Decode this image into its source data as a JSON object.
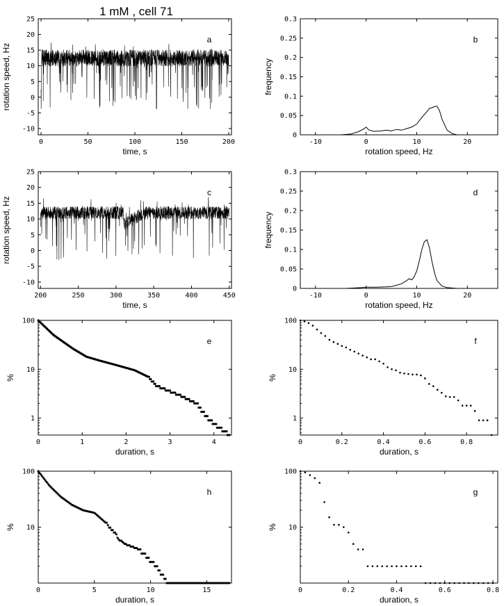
{
  "figure_title": "1 mM , cell 71",
  "chart_data": [
    {
      "id": "a",
      "panel_label": "a",
      "type": "line",
      "xlabel": "time, s",
      "ylabel": "rotation speed, Hz",
      "xlim": [
        -3,
        203
      ],
      "ylim": [
        -12,
        25
      ],
      "xticks": [
        0,
        50,
        100,
        150,
        200
      ],
      "yticks": [
        -10,
        -5,
        0,
        5,
        10,
        15,
        20,
        25
      ],
      "trace": {
        "t_start": 0,
        "t_end": 200,
        "mean": 12.5,
        "noise": 1.6,
        "dips": 110,
        "dip_min": -4,
        "seed": 11
      },
      "description": "rotation speed time trace, 0-200 s"
    },
    {
      "id": "b",
      "panel_label": "b",
      "type": "line",
      "xlabel": "rotation speed, Hz",
      "ylabel": "frequency",
      "xlim": [
        -13,
        26
      ],
      "ylim": [
        0,
        0.3
      ],
      "xticks": [
        -10,
        0,
        10,
        20
      ],
      "yticks": [
        0,
        0.05,
        0.1,
        0.15,
        0.2,
        0.25,
        0.3
      ],
      "x": [
        -13,
        -5,
        -3,
        -1.5,
        -0.5,
        0,
        0.5,
        1.5,
        3,
        4,
        5,
        6,
        7,
        8,
        9,
        10,
        11,
        12,
        12.5,
        13,
        13.5,
        14,
        14.5,
        15,
        16,
        17,
        18,
        20,
        26
      ],
      "y": [
        0,
        0,
        0.002,
        0.008,
        0.015,
        0.02,
        0.013,
        0.009,
        0.01,
        0.012,
        0.01,
        0.014,
        0.012,
        0.016,
        0.02,
        0.028,
        0.045,
        0.06,
        0.068,
        0.07,
        0.073,
        0.074,
        0.062,
        0.04,
        0.012,
        0.003,
        0,
        0,
        0
      ]
    },
    {
      "id": "c",
      "panel_label": "c",
      "type": "line",
      "xlabel": "time, s",
      "ylabel": "rotation speed, Hz",
      "xlim": [
        197,
        453
      ],
      "ylim": [
        -12,
        25
      ],
      "xticks": [
        200,
        250,
        300,
        350,
        400,
        450
      ],
      "yticks": [
        -10,
        -5,
        0,
        5,
        10,
        15,
        20,
        25
      ],
      "trace": {
        "t_start": 200,
        "t_end": 450,
        "mean": 12,
        "noise": 1.2,
        "dips": 70,
        "dip_min": -3,
        "seed": 29,
        "sag": [
          310,
          340,
          8.5
        ]
      },
      "description": "rotation speed time trace, 200-450 s"
    },
    {
      "id": "d",
      "panel_label": "d",
      "type": "line",
      "xlabel": "rotation speed, Hz",
      "ylabel": "frequency",
      "xlim": [
        -13,
        26
      ],
      "ylim": [
        0,
        0.3
      ],
      "xticks": [
        -10,
        0,
        10,
        20
      ],
      "yticks": [
        0,
        0.05,
        0.1,
        0.15,
        0.2,
        0.25,
        0.3
      ],
      "x": [
        -13,
        -4,
        -1,
        0,
        2,
        4,
        5,
        6,
        7,
        8,
        8.5,
        9,
        9.5,
        10,
        10.5,
        11,
        11.5,
        12,
        12.5,
        13,
        13.5,
        14,
        15,
        16,
        18,
        26
      ],
      "y": [
        0,
        0,
        0.002,
        0.003,
        0.003,
        0.004,
        0.005,
        0.008,
        0.012,
        0.02,
        0.025,
        0.022,
        0.03,
        0.045,
        0.07,
        0.1,
        0.12,
        0.125,
        0.105,
        0.07,
        0.04,
        0.02,
        0.006,
        0.002,
        0,
        0
      ]
    },
    {
      "id": "e",
      "panel_label": "e",
      "type": "scatter",
      "xlabel": "duration, s",
      "ylabel": "%",
      "yscale": "log",
      "xlim": [
        0,
        4.4
      ],
      "ylim": [
        0.45,
        100
      ],
      "xticks": [
        0,
        1,
        2,
        3,
        4
      ],
      "ytick_labels": [
        "100",
        "10",
        "1"
      ],
      "yticks": [
        100,
        10,
        1
      ],
      "step_data": [
        [
          0,
          100
        ],
        [
          0.35,
          50
        ],
        [
          0.8,
          26
        ],
        [
          1.1,
          18
        ],
        [
          1.4,
          15
        ],
        [
          1.8,
          12
        ],
        [
          2.2,
          9.5
        ],
        [
          2.5,
          7
        ],
        [
          2.7,
          4.5
        ],
        [
          3.2,
          3
        ],
        [
          3.6,
          2
        ],
        [
          3.9,
          0.9
        ],
        [
          4.35,
          0.45
        ]
      ],
      "n_points": 220
    },
    {
      "id": "f",
      "panel_label": "f",
      "type": "scatter",
      "xlabel": "duration, s",
      "ylabel": "%",
      "yscale": "log",
      "xlim": [
        0,
        0.95
      ],
      "ylim": [
        0.45,
        100
      ],
      "xticks": [
        0,
        0.2,
        0.4,
        0.6,
        0.8
      ],
      "ytick_labels": [
        "100",
        "10",
        "1"
      ],
      "yticks": [
        100,
        10,
        1
      ],
      "x": [
        0,
        0.02,
        0.04,
        0.06,
        0.08,
        0.1,
        0.12,
        0.14,
        0.16,
        0.18,
        0.2,
        0.22,
        0.24,
        0.26,
        0.28,
        0.3,
        0.32,
        0.34,
        0.36,
        0.38,
        0.4,
        0.42,
        0.44,
        0.46,
        0.48,
        0.5,
        0.52,
        0.54,
        0.56,
        0.58,
        0.6,
        0.62,
        0.64,
        0.66,
        0.68,
        0.7,
        0.72,
        0.74,
        0.76,
        0.78,
        0.8,
        0.82,
        0.84,
        0.86,
        0.88,
        0.9,
        0.92
      ],
      "y": [
        100,
        95,
        88,
        78,
        65,
        55,
        48,
        40,
        36,
        33,
        30,
        28,
        25,
        23,
        21,
        19,
        17.5,
        16,
        16,
        14.5,
        13,
        11,
        10,
        9.5,
        8.5,
        8.2,
        8,
        7.8,
        7.8,
        7.5,
        6.5,
        5,
        4.5,
        3.8,
        3.3,
        2.8,
        2.7,
        2.7,
        2.3,
        1.8,
        1.8,
        1.8,
        1.4,
        0.9,
        0.9,
        0.9,
        0.45
      ]
    },
    {
      "id": "h",
      "panel_label": "h",
      "type": "scatter",
      "xlabel": "duration, s",
      "ylabel": "%",
      "yscale": "log",
      "xlim": [
        0,
        17.2
      ],
      "ylim": [
        1,
        100
      ],
      "xticks": [
        0,
        5,
        10,
        15
      ],
      "ytick_labels": [
        "100",
        "10"
      ],
      "yticks": [
        100,
        10
      ],
      "step_data": [
        [
          0,
          100
        ],
        [
          1,
          55
        ],
        [
          2,
          35
        ],
        [
          3,
          25
        ],
        [
          4,
          20
        ],
        [
          5,
          18
        ],
        [
          6,
          12
        ],
        [
          6.8,
          8
        ],
        [
          7.2,
          6
        ],
        [
          7.7,
          5
        ],
        [
          9,
          4
        ],
        [
          10.5,
          2
        ],
        [
          11.5,
          1
        ],
        [
          17,
          1
        ]
      ],
      "n_points": 160
    },
    {
      "id": "g",
      "panel_label": "g",
      "type": "scatter",
      "xlabel": "duration, s",
      "ylabel": "%",
      "yscale": "log",
      "xlim": [
        0,
        0.82
      ],
      "ylim": [
        1,
        100
      ],
      "xticks": [
        0,
        0.2,
        0.4,
        0.6,
        0.8
      ],
      "ytick_labels": [
        "100",
        "10"
      ],
      "yticks": [
        100,
        10
      ],
      "x": [
        0,
        0.02,
        0.04,
        0.06,
        0.08,
        0.1,
        0.12,
        0.14,
        0.16,
        0.18,
        0.2,
        0.22,
        0.24,
        0.26,
        0.28,
        0.3,
        0.32,
        0.34,
        0.36,
        0.38,
        0.4,
        0.42,
        0.44,
        0.46,
        0.48,
        0.5,
        0.52,
        0.54,
        0.56,
        0.58,
        0.6,
        0.62,
        0.64,
        0.66,
        0.68,
        0.7,
        0.72,
        0.74,
        0.76,
        0.78,
        0.8
      ],
      "y": [
        100,
        95,
        85,
        75,
        62,
        28,
        15,
        11,
        11,
        10,
        8,
        5,
        4,
        4,
        2,
        2,
        2,
        2,
        2,
        2,
        2,
        2,
        2,
        2,
        2,
        2,
        1,
        1,
        1,
        1,
        1,
        1,
        1,
        1,
        1,
        1,
        1,
        1,
        1,
        1,
        1
      ]
    }
  ]
}
